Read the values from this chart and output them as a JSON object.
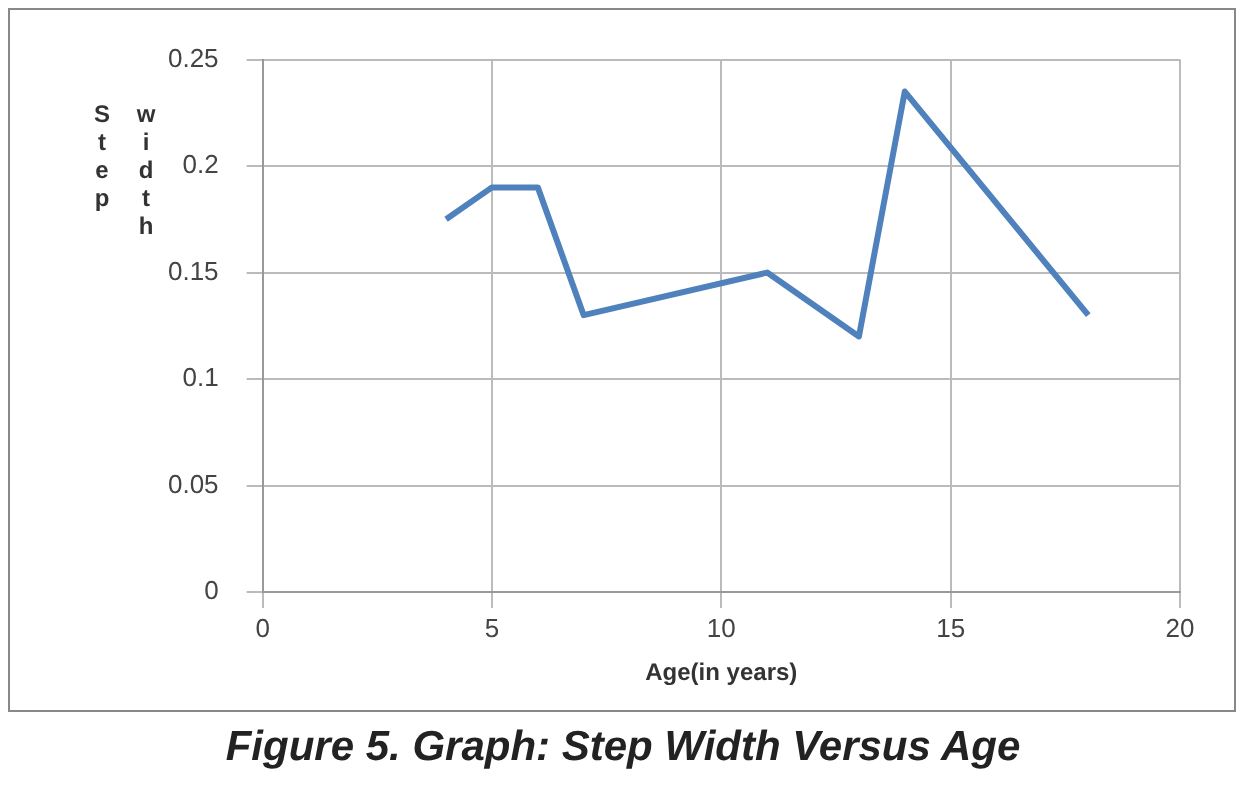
{
  "chart_data": {
    "type": "line",
    "title": "Figure 5. Graph: Step Width Versus Age",
    "xlabel": "Age(in years)",
    "ylabel": "Step width",
    "x": [
      4,
      5,
      6,
      7,
      11,
      13,
      14,
      18
    ],
    "series": [
      {
        "color": "#4f81bd",
        "values": [
          0.175,
          0.19,
          0.19,
          0.13,
          0.15,
          0.12,
          0.235,
          0.13
        ]
      }
    ],
    "xlim": [
      0,
      20
    ],
    "xticks": [
      0,
      5,
      10,
      15,
      20
    ],
    "ylim": [
      0,
      0.25
    ],
    "yticks": [
      0,
      0.05,
      0.1,
      0.15,
      0.2,
      0.25
    ],
    "grid": true,
    "legend": false,
    "marker": "none",
    "line_style": "solid"
  }
}
